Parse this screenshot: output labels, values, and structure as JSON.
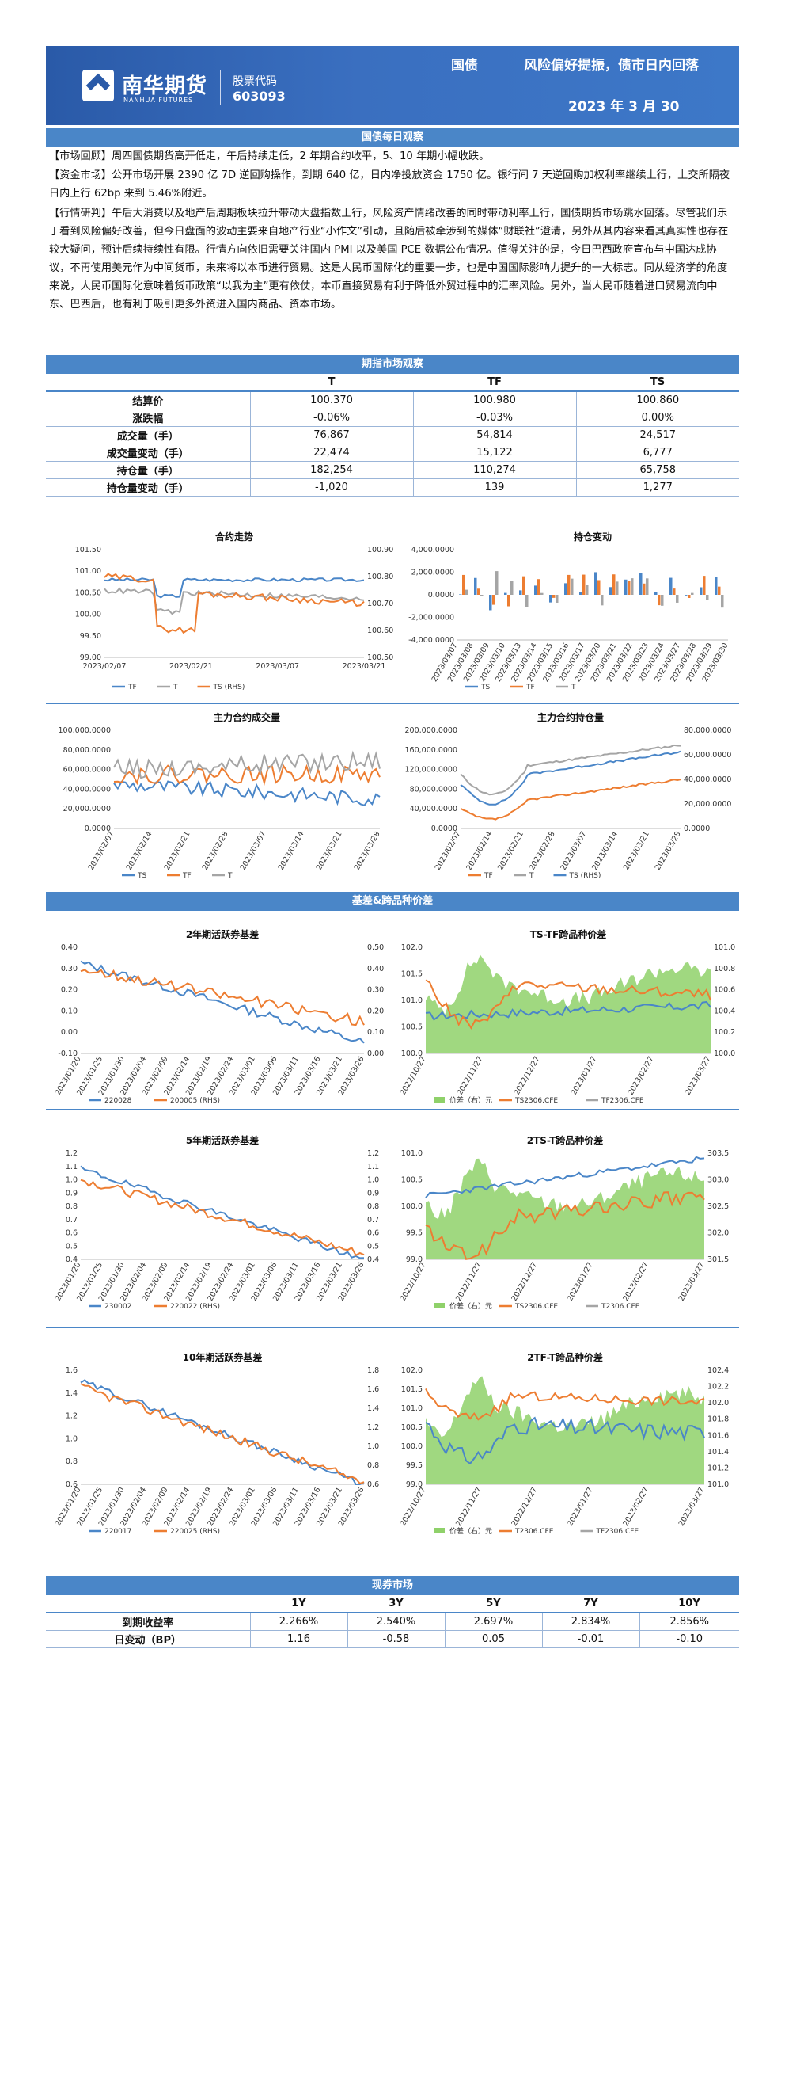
{
  "header": {
    "logo_cn": "南华期货",
    "logo_en": "NANHUA FUTURES",
    "stock_label": "股票代码",
    "stock_code": "603093",
    "category": "国债",
    "title": "风险偏好提振，债市日内回落",
    "date": "2023 年 3 月 30"
  },
  "sections": {
    "daily": "国债每日观察",
    "futures": "期指市场观察",
    "basis": "基差&跨品种价差",
    "spot": "现券市场"
  },
  "daily": {
    "p1_tag": "【市场回顾】",
    "p1": "周四国债期货高开低走，午后持续走低，2 年期合约收平，5、10 年期小幅收跌。",
    "p2_tag": "【资金市场】",
    "p2": "公开市场开展 2390 亿 7D 逆回购操作，到期 640 亿，日内净投放资金 1750 亿。银行间 7 天逆回购加权利率继续上行，上交所隔夜日内上行 62bp 来到 5.46%附近。",
    "p3_tag": "【行情研判】",
    "p3": "午后大消费以及地产后周期板块拉升带动大盘指数上行，风险资产情绪改善的同时带动利率上行，国债期货市场跳水回落。尽管我们乐于看到风险偏好改善，但今日盘面的波动主要来自地产行业“小作文”引动，且随后被牵涉到的媒体“财联社”澄清，另外从其内容来看其真实性也存在较大疑问，预计后续持续性有限。行情方向依旧需要关注国内 PMI 以及美国 PCE 数据公布情况。值得关注的是，今日巴西政府宣布与中国达成协议，不再使用美元作为中间货币，未来将以本币进行贸易。这是人民币国际化的重要一步，也是中国国际影响力提升的一大标志。同从经济学的角度来说，人民币国际化意味着货币政策“以我为主”更有依仗，本币直接贸易有利于降低外贸过程中的汇率风险。另外，当人民币随着进口贸易流向中东、巴西后，也有利于吸引更多外资进入国内商品、资本市场。"
  },
  "futures_table": {
    "headers": [
      "",
      "T",
      "TF",
      "TS"
    ],
    "rows": [
      [
        "结算价",
        "100.370",
        "100.980",
        "100.860"
      ],
      [
        "涨跌幅",
        "-0.06%",
        "-0.03%",
        "0.00%"
      ],
      [
        "成交量（手）",
        "76,867",
        "54,814",
        "24,517"
      ],
      [
        "成交量变动（手）",
        "22,474",
        "15,122",
        "6,777"
      ],
      [
        "持仓量（手）",
        "182,254",
        "110,274",
        "65,758"
      ],
      [
        "持仓量变动（手）",
        "-1,020",
        "139",
        "1,277"
      ]
    ]
  },
  "spot_table": {
    "headers": [
      "",
      "1Y",
      "3Y",
      "5Y",
      "7Y",
      "10Y"
    ],
    "rows": [
      [
        "到期收益率",
        "2.266%",
        "2.540%",
        "2.697%",
        "2.834%",
        "2.856%"
      ],
      [
        "日变动（BP）",
        "1.16",
        "-0.58",
        "0.05",
        "-0.01",
        "-0.10"
      ]
    ]
  },
  "colors": {
    "blue": "#4a86c8",
    "orange": "#ed7d31",
    "gray": "#a5a5a5",
    "green": "#8fd16a",
    "navy": "#2a5aa8"
  },
  "chart_data": [
    {
      "id": "c1",
      "type": "line",
      "title": "合约走势",
      "yticks_left": [
        "101.50",
        "101.00",
        "100.50",
        "100.00",
        "99.50",
        "99.00"
      ],
      "yticks_right": [
        "100.90",
        "100.80",
        "100.70",
        "100.60",
        "100.50"
      ],
      "xticks": [
        "2023/02/07",
        "2023/02/21",
        "2023/03/07",
        "2023/03/21"
      ],
      "legend": [
        "TF",
        "T",
        "TS (RHS)"
      ]
    },
    {
      "id": "c2",
      "type": "bar",
      "title": "持仓变动",
      "yticks_left": [
        "4,000.0000",
        "2,000.0000",
        "0.0000",
        "-2,000.0000",
        "-4,000.0000"
      ],
      "xticks": [
        "2023/03/07",
        "2023/03/08",
        "2023/03/09",
        "2023/03/10",
        "2023/03/13",
        "2023/03/14",
        "2023/03/15",
        "2023/03/16",
        "2023/03/17",
        "2023/03/20",
        "2023/03/21",
        "2023/03/22",
        "2023/03/23",
        "2023/03/24",
        "2023/03/27",
        "2023/03/28",
        "2023/03/29",
        "2023/03/30"
      ],
      "legend": [
        "TS",
        "TF",
        "T"
      ]
    },
    {
      "id": "c3",
      "type": "line",
      "title": "主力合约成交量",
      "yticks_left": [
        "100,000.0000",
        "80,000.0000",
        "60,000.0000",
        "40,000.0000",
        "20,000.0000",
        "0.0000"
      ],
      "xticks": [
        "2023/02/07",
        "2023/02/14",
        "2023/02/21",
        "2023/02/28",
        "2023/03/07",
        "2023/03/14",
        "2023/03/21",
        "2023/03/28"
      ],
      "legend": [
        "TS",
        "TF",
        "T"
      ]
    },
    {
      "id": "c4",
      "type": "line",
      "title": "主力合约持仓量",
      "yticks_left": [
        "200,000.0000",
        "160,000.0000",
        "120,000.0000",
        "80,000.0000",
        "40,000.0000",
        "0.0000"
      ],
      "yticks_right": [
        "80,000.0000",
        "60,000.0000",
        "40,000.0000",
        "20,000.0000",
        "0.0000"
      ],
      "xticks": [
        "2023/02/07",
        "2023/02/14",
        "2023/02/21",
        "2023/02/28",
        "2023/03/07",
        "2023/03/14",
        "2023/03/21",
        "2023/03/28"
      ],
      "legend": [
        "TF",
        "T",
        "TS (RHS)"
      ]
    },
    {
      "id": "c5",
      "type": "line",
      "title": "2年期活跃券基差",
      "yticks_left": [
        "0.40",
        "0.30",
        "0.20",
        "0.10",
        "0.00",
        "-0.10"
      ],
      "yticks_right": [
        "0.50",
        "0.40",
        "0.30",
        "0.20",
        "0.10",
        "0.00"
      ],
      "xticks": [
        "2023/01/20",
        "2023/01/25",
        "2023/01/30",
        "2023/02/04",
        "2023/02/09",
        "2023/02/14",
        "2023/02/19",
        "2023/02/24",
        "2023/03/01",
        "2023/03/06",
        "2023/03/11",
        "2023/03/16",
        "2023/03/21",
        "2023/03/26"
      ],
      "legend": [
        "220028",
        "200005 (RHS)"
      ]
    },
    {
      "id": "c6",
      "type": "area",
      "title": "TS-TF跨品种价差",
      "yticks_left": [
        "102.0",
        "101.5",
        "101.0",
        "100.5",
        "100.0"
      ],
      "yticks_right": [
        "101.0",
        "100.8",
        "100.6",
        "100.4",
        "100.2",
        "100.0"
      ],
      "xticks": [
        "2022/10/27",
        "2022/11/27",
        "2022/12/27",
        "2023/01/27",
        "2023/02/27",
        "2023/03/27"
      ],
      "legend": [
        "价差（右）元",
        "TS2306.CFE",
        "TF2306.CFE"
      ]
    },
    {
      "id": "c7",
      "type": "line",
      "title": "5年期活跃券基差",
      "yticks_left": [
        "1.2",
        "1.1",
        "1.0",
        "0.9",
        "0.8",
        "0.7",
        "0.6",
        "0.5",
        "0.4"
      ],
      "yticks_right": [
        "1.2",
        "1.1",
        "1.0",
        "0.9",
        "0.8",
        "0.7",
        "0.6",
        "0.5",
        "0.4"
      ],
      "xticks": [
        "2023/01/20",
        "2023/01/25",
        "2023/01/30",
        "2023/02/04",
        "2023/02/09",
        "2023/02/14",
        "2023/02/19",
        "2023/02/24",
        "2023/03/01",
        "2023/03/06",
        "2023/03/11",
        "2023/03/16",
        "2023/03/21",
        "2023/03/26"
      ],
      "legend": [
        "230002",
        "220022 (RHS)"
      ]
    },
    {
      "id": "c8",
      "type": "area",
      "title": "2TS-T跨品种价差",
      "yticks_left": [
        "101.0",
        "100.5",
        "100.0",
        "99.5",
        "99.0"
      ],
      "yticks_right": [
        "303.5",
        "303.0",
        "302.5",
        "302.0",
        "301.5"
      ],
      "xticks": [
        "2022/10/27",
        "2022/11/27",
        "2022/12/27",
        "2023/01/27",
        "2023/02/27",
        "2023/03/27"
      ],
      "legend": [
        "价差（右）元",
        "TS2306.CFE",
        "T2306.CFE"
      ]
    },
    {
      "id": "c9",
      "type": "line",
      "title": "10年期活跃券基差",
      "yticks_left": [
        "1.6",
        "1.4",
        "1.2",
        "1.0",
        "0.8",
        "0.6"
      ],
      "yticks_right": [
        "1.8",
        "1.6",
        "1.4",
        "1.2",
        "1.0",
        "0.8",
        "0.6"
      ],
      "xticks": [
        "2023/01/20",
        "2023/01/25",
        "2023/01/30",
        "2023/02/04",
        "2023/02/09",
        "2023/02/14",
        "2023/02/19",
        "2023/02/24",
        "2023/03/01",
        "2023/03/06",
        "2023/03/11",
        "2023/03/16",
        "2023/03/21",
        "2023/03/26"
      ],
      "legend": [
        "220017",
        "220025 (RHS)"
      ]
    },
    {
      "id": "c10",
      "type": "area",
      "title": "2TF-T跨品种价差",
      "yticks_left": [
        "102.0",
        "101.5",
        "101.0",
        "100.5",
        "100.0",
        "99.5",
        "99.0"
      ],
      "yticks_right": [
        "102.4",
        "102.2",
        "102.0",
        "101.8",
        "101.6",
        "101.4",
        "101.2",
        "101.0"
      ],
      "xticks": [
        "2022/10/27",
        "2022/11/27",
        "2022/12/27",
        "2023/01/27",
        "2023/02/27",
        "2023/03/27"
      ],
      "legend": [
        "价差（右）元",
        "T2306.CFE",
        "TF2306.CFE"
      ]
    }
  ]
}
